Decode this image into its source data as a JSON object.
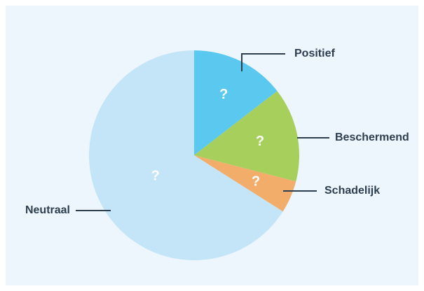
{
  "chart_data": {
    "type": "pie",
    "categories": [
      "Positief",
      "Beschermend",
      "Schadelijk",
      "Neutraal"
    ],
    "values": [
      14.5,
      14.5,
      5,
      66
    ],
    "value_labels": [
      "?",
      "?",
      "?",
      "?"
    ],
    "colors": [
      "#5bc8f0",
      "#a6cf5b",
      "#f3ad6b",
      "#c3e5f7"
    ]
  }
}
